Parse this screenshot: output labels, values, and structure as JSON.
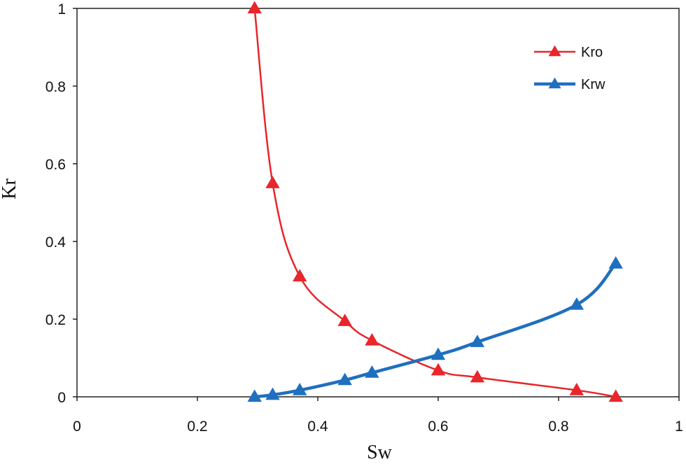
{
  "chart_data": {
    "type": "line",
    "title": "",
    "xlabel": "Sw",
    "ylabel": "Kr",
    "xlim": [
      0,
      1
    ],
    "ylim": [
      0,
      1
    ],
    "xticks": [
      0,
      0.2,
      0.4,
      0.6,
      0.8,
      1
    ],
    "xtick_labels": [
      "0",
      "0.2",
      "0.4",
      "0.6",
      "0.8",
      "1"
    ],
    "yticks": [
      0,
      0.2,
      0.4,
      0.6,
      0.8,
      1
    ],
    "ytick_labels": [
      "0",
      "0.2",
      "0.4",
      "0.6",
      "0.8",
      "1"
    ],
    "grid": false,
    "legend_position": "top-right",
    "series": [
      {
        "name": "Kro",
        "color": "#e8262b",
        "marker": "triangle",
        "x": [
          0.295,
          0.325,
          0.37,
          0.445,
          0.49,
          0.6,
          0.665,
          0.83,
          0.895
        ],
        "y": [
          1.0,
          0.55,
          0.31,
          0.195,
          0.145,
          0.068,
          0.05,
          0.017,
          0.0
        ]
      },
      {
        "name": "Krw",
        "color": "#1f6fbf",
        "marker": "triangle",
        "x": [
          0.295,
          0.325,
          0.37,
          0.445,
          0.49,
          0.6,
          0.665,
          0.83,
          0.895
        ],
        "y": [
          0.0,
          0.005,
          0.017,
          0.043,
          0.062,
          0.108,
          0.141,
          0.237,
          0.343
        ]
      }
    ]
  }
}
